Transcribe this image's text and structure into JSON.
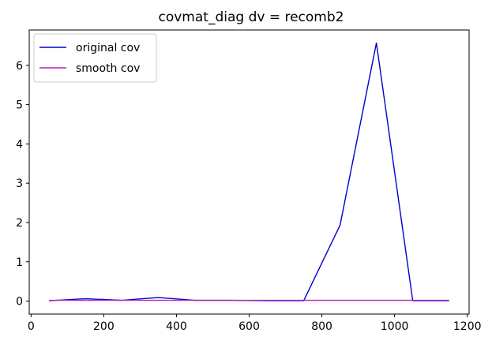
{
  "chart_data": {
    "type": "line",
    "title": "covmat_diag dv = recomb2",
    "xlabel": "",
    "ylabel": "",
    "xlim": [
      -5,
      1205
    ],
    "ylim": [
      -0.33,
      6.9
    ],
    "x_ticks": [
      0,
      200,
      400,
      600,
      800,
      1000,
      1200
    ],
    "y_ticks": [
      0,
      1,
      2,
      3,
      4,
      5,
      6
    ],
    "grid": false,
    "legend_position": "top-left",
    "x": [
      50,
      150,
      250,
      350,
      450,
      550,
      650,
      750,
      850,
      950,
      1050,
      1150
    ],
    "series": [
      {
        "name": "original cov",
        "color": "#0000cc",
        "values": [
          0.01,
          0.06,
          0.02,
          0.09,
          0.02,
          0.02,
          0.01,
          0.01,
          1.93,
          6.57,
          0.01,
          0.01
        ]
      },
      {
        "name": "smooth cov",
        "color": "#bb22bb",
        "values": [
          0.02,
          0.02,
          0.02,
          0.02,
          0.02,
          0.02,
          0.02,
          0.02,
          0.02,
          0.02,
          0.02,
          0.02
        ]
      }
    ]
  }
}
